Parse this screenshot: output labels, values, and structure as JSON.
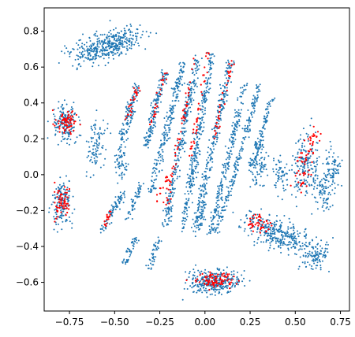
{
  "chart_data": {
    "type": "scatter",
    "title": "",
    "xlabel": "",
    "ylabel": "",
    "xlim": [
      -0.89,
      0.8
    ],
    "ylim": [
      -0.76,
      0.93
    ],
    "grid": false,
    "legend": "none",
    "xticks": [
      -0.75,
      -0.5,
      -0.25,
      0.0,
      0.25,
      0.5,
      0.75
    ],
    "xtick_labels": [
      "−0.75",
      "−0.50",
      "−0.25",
      "0.00",
      "0.25",
      "0.50",
      "0.75"
    ],
    "yticks": [
      -0.6,
      -0.4,
      -0.2,
      0.0,
      0.2,
      0.4,
      0.6,
      0.8
    ],
    "ytick_labels": [
      "−0.6",
      "−0.4",
      "−0.2",
      "0.0",
      "0.2",
      "0.4",
      "0.6",
      "0.8"
    ],
    "series": [
      {
        "color": "#1f77b4",
        "clusters": [
          {
            "shape": "ellipse",
            "cx": -0.55,
            "cy": 0.72,
            "rx": 0.19,
            "ry": 0.07,
            "angle": 22,
            "n": 420
          },
          {
            "shape": "ellipse",
            "cx": -0.77,
            "cy": 0.28,
            "rx": 0.07,
            "ry": 0.09,
            "angle": 0,
            "n": 170
          },
          {
            "shape": "ellipse",
            "cx": -0.79,
            "cy": -0.16,
            "rx": 0.05,
            "ry": 0.12,
            "angle": 0,
            "n": 150
          },
          {
            "shape": "ellipse",
            "cx": -0.6,
            "cy": 0.17,
            "rx": 0.05,
            "ry": 0.12,
            "angle": -10,
            "n": 90
          },
          {
            "shape": "ellipse",
            "cx": -0.46,
            "cy": 0.07,
            "rx": 0.03,
            "ry": 0.09,
            "angle": 0,
            "n": 60
          },
          {
            "shape": "ellipse",
            "cx": 0.05,
            "cy": -0.6,
            "rx": 0.13,
            "ry": 0.06,
            "angle": 0,
            "n": 320
          },
          {
            "shape": "ellipse",
            "cx": 0.4,
            "cy": -0.33,
            "rx": 0.17,
            "ry": 0.07,
            "angle": -25,
            "n": 320
          },
          {
            "shape": "ellipse",
            "cx": 0.62,
            "cy": -0.44,
            "rx": 0.07,
            "ry": 0.08,
            "angle": 0,
            "n": 110
          },
          {
            "shape": "ellipse",
            "cx": 0.66,
            "cy": -0.1,
            "rx": 0.05,
            "ry": 0.09,
            "angle": 0,
            "n": 80
          },
          {
            "shape": "ellipse",
            "cx": 0.56,
            "cy": 0.05,
            "rx": 0.07,
            "ry": 0.18,
            "angle": -5,
            "n": 180
          },
          {
            "shape": "ellipse",
            "cx": 0.71,
            "cy": 0.05,
            "rx": 0.04,
            "ry": 0.1,
            "angle": 0,
            "n": 70
          },
          {
            "shape": "ellipse",
            "cx": 0.3,
            "cy": 0.05,
            "rx": 0.05,
            "ry": 0.12,
            "angle": 0,
            "n": 80
          },
          {
            "shape": "ellipse",
            "cx": 0.42,
            "cy": 0.0,
            "rx": 0.04,
            "ry": 0.1,
            "angle": 0,
            "n": 60
          },
          {
            "shape": "segment",
            "x1": -0.37,
            "y1": 0.5,
            "x2": -0.46,
            "y2": 0.2,
            "w": 0.02,
            "n": 120
          },
          {
            "shape": "segment",
            "x1": -0.22,
            "y1": 0.58,
            "x2": -0.33,
            "y2": 0.15,
            "w": 0.018,
            "n": 150
          },
          {
            "shape": "segment",
            "x1": -0.12,
            "y1": 0.62,
            "x2": -0.3,
            "y2": -0.1,
            "w": 0.018,
            "n": 220
          },
          {
            "shape": "segment",
            "x1": -0.04,
            "y1": 0.66,
            "x2": -0.22,
            "y2": -0.28,
            "w": 0.018,
            "n": 270
          },
          {
            "shape": "segment",
            "x1": 0.04,
            "y1": 0.68,
            "x2": -0.12,
            "y2": -0.3,
            "w": 0.018,
            "n": 280
          },
          {
            "shape": "segment",
            "x1": 0.15,
            "y1": 0.65,
            "x2": -0.06,
            "y2": -0.32,
            "w": 0.018,
            "n": 270
          },
          {
            "shape": "segment",
            "x1": 0.22,
            "y1": 0.5,
            "x2": 0.03,
            "y2": -0.33,
            "w": 0.016,
            "n": 210
          },
          {
            "shape": "segment",
            "x1": 0.3,
            "y1": 0.5,
            "x2": 0.13,
            "y2": -0.12,
            "w": 0.015,
            "n": 150
          },
          {
            "shape": "segment",
            "x1": 0.37,
            "y1": 0.42,
            "x2": 0.25,
            "y2": 0.02,
            "w": 0.015,
            "n": 100
          },
          {
            "shape": "segment",
            "x1": -0.45,
            "y1": -0.1,
            "x2": -0.57,
            "y2": -0.32,
            "w": 0.02,
            "n": 80
          },
          {
            "shape": "segment",
            "x1": -0.35,
            "y1": -0.05,
            "x2": -0.43,
            "y2": -0.25,
            "w": 0.015,
            "n": 50
          },
          {
            "shape": "segment",
            "x1": -0.25,
            "y1": -0.35,
            "x2": -0.31,
            "y2": -0.52,
            "w": 0.015,
            "n": 45
          },
          {
            "shape": "segment",
            "x1": -0.38,
            "y1": -0.35,
            "x2": -0.45,
            "y2": -0.5,
            "w": 0.015,
            "n": 45
          },
          {
            "shape": "segment",
            "x1": 0.0,
            "y1": -0.15,
            "x2": -0.03,
            "y2": -0.3,
            "w": 0.015,
            "n": 40
          },
          {
            "shape": "segment",
            "x1": 0.12,
            "y1": -0.12,
            "x2": 0.06,
            "y2": -0.32,
            "w": 0.015,
            "n": 50
          }
        ]
      },
      {
        "color": "#ff0000",
        "clusters": [
          {
            "shape": "ellipse",
            "cx": -0.77,
            "cy": 0.29,
            "rx": 0.05,
            "ry": 0.07,
            "angle": 0,
            "n": 70
          },
          {
            "shape": "ellipse",
            "cx": -0.79,
            "cy": -0.15,
            "rx": 0.035,
            "ry": 0.09,
            "angle": 0,
            "n": 60
          },
          {
            "shape": "ellipse",
            "cx": 0.06,
            "cy": -0.59,
            "rx": 0.1,
            "ry": 0.04,
            "angle": 0,
            "n": 90
          },
          {
            "shape": "ellipse",
            "cx": 0.3,
            "cy": -0.27,
            "rx": 0.07,
            "ry": 0.04,
            "angle": -20,
            "n": 45
          },
          {
            "shape": "ellipse",
            "cx": 0.55,
            "cy": 0.05,
            "rx": 0.04,
            "ry": 0.13,
            "angle": -5,
            "n": 45
          },
          {
            "shape": "ellipse",
            "cx": 0.6,
            "cy": 0.2,
            "rx": 0.025,
            "ry": 0.06,
            "angle": 0,
            "n": 20
          },
          {
            "shape": "segment",
            "x1": -0.36,
            "y1": 0.5,
            "x2": -0.44,
            "y2": 0.3,
            "w": 0.015,
            "n": 25
          },
          {
            "shape": "segment",
            "x1": -0.22,
            "y1": 0.57,
            "x2": -0.3,
            "y2": 0.25,
            "w": 0.012,
            "n": 25
          },
          {
            "shape": "segment",
            "x1": -0.06,
            "y1": 0.65,
            "x2": -0.22,
            "y2": -0.2,
            "w": 0.012,
            "n": 55
          },
          {
            "shape": "segment",
            "x1": 0.02,
            "y1": 0.68,
            "x2": -0.08,
            "y2": 0.1,
            "w": 0.012,
            "n": 40
          },
          {
            "shape": "segment",
            "x1": 0.15,
            "y1": 0.65,
            "x2": 0.05,
            "y2": 0.2,
            "w": 0.012,
            "n": 35
          },
          {
            "shape": "segment",
            "x1": -0.52,
            "y1": -0.2,
            "x2": -0.56,
            "y2": -0.3,
            "w": 0.012,
            "n": 15
          },
          {
            "shape": "segment",
            "x1": -0.2,
            "y1": 0.0,
            "x2": -0.28,
            "y2": -0.15,
            "w": 0.012,
            "n": 15
          }
        ]
      }
    ]
  }
}
